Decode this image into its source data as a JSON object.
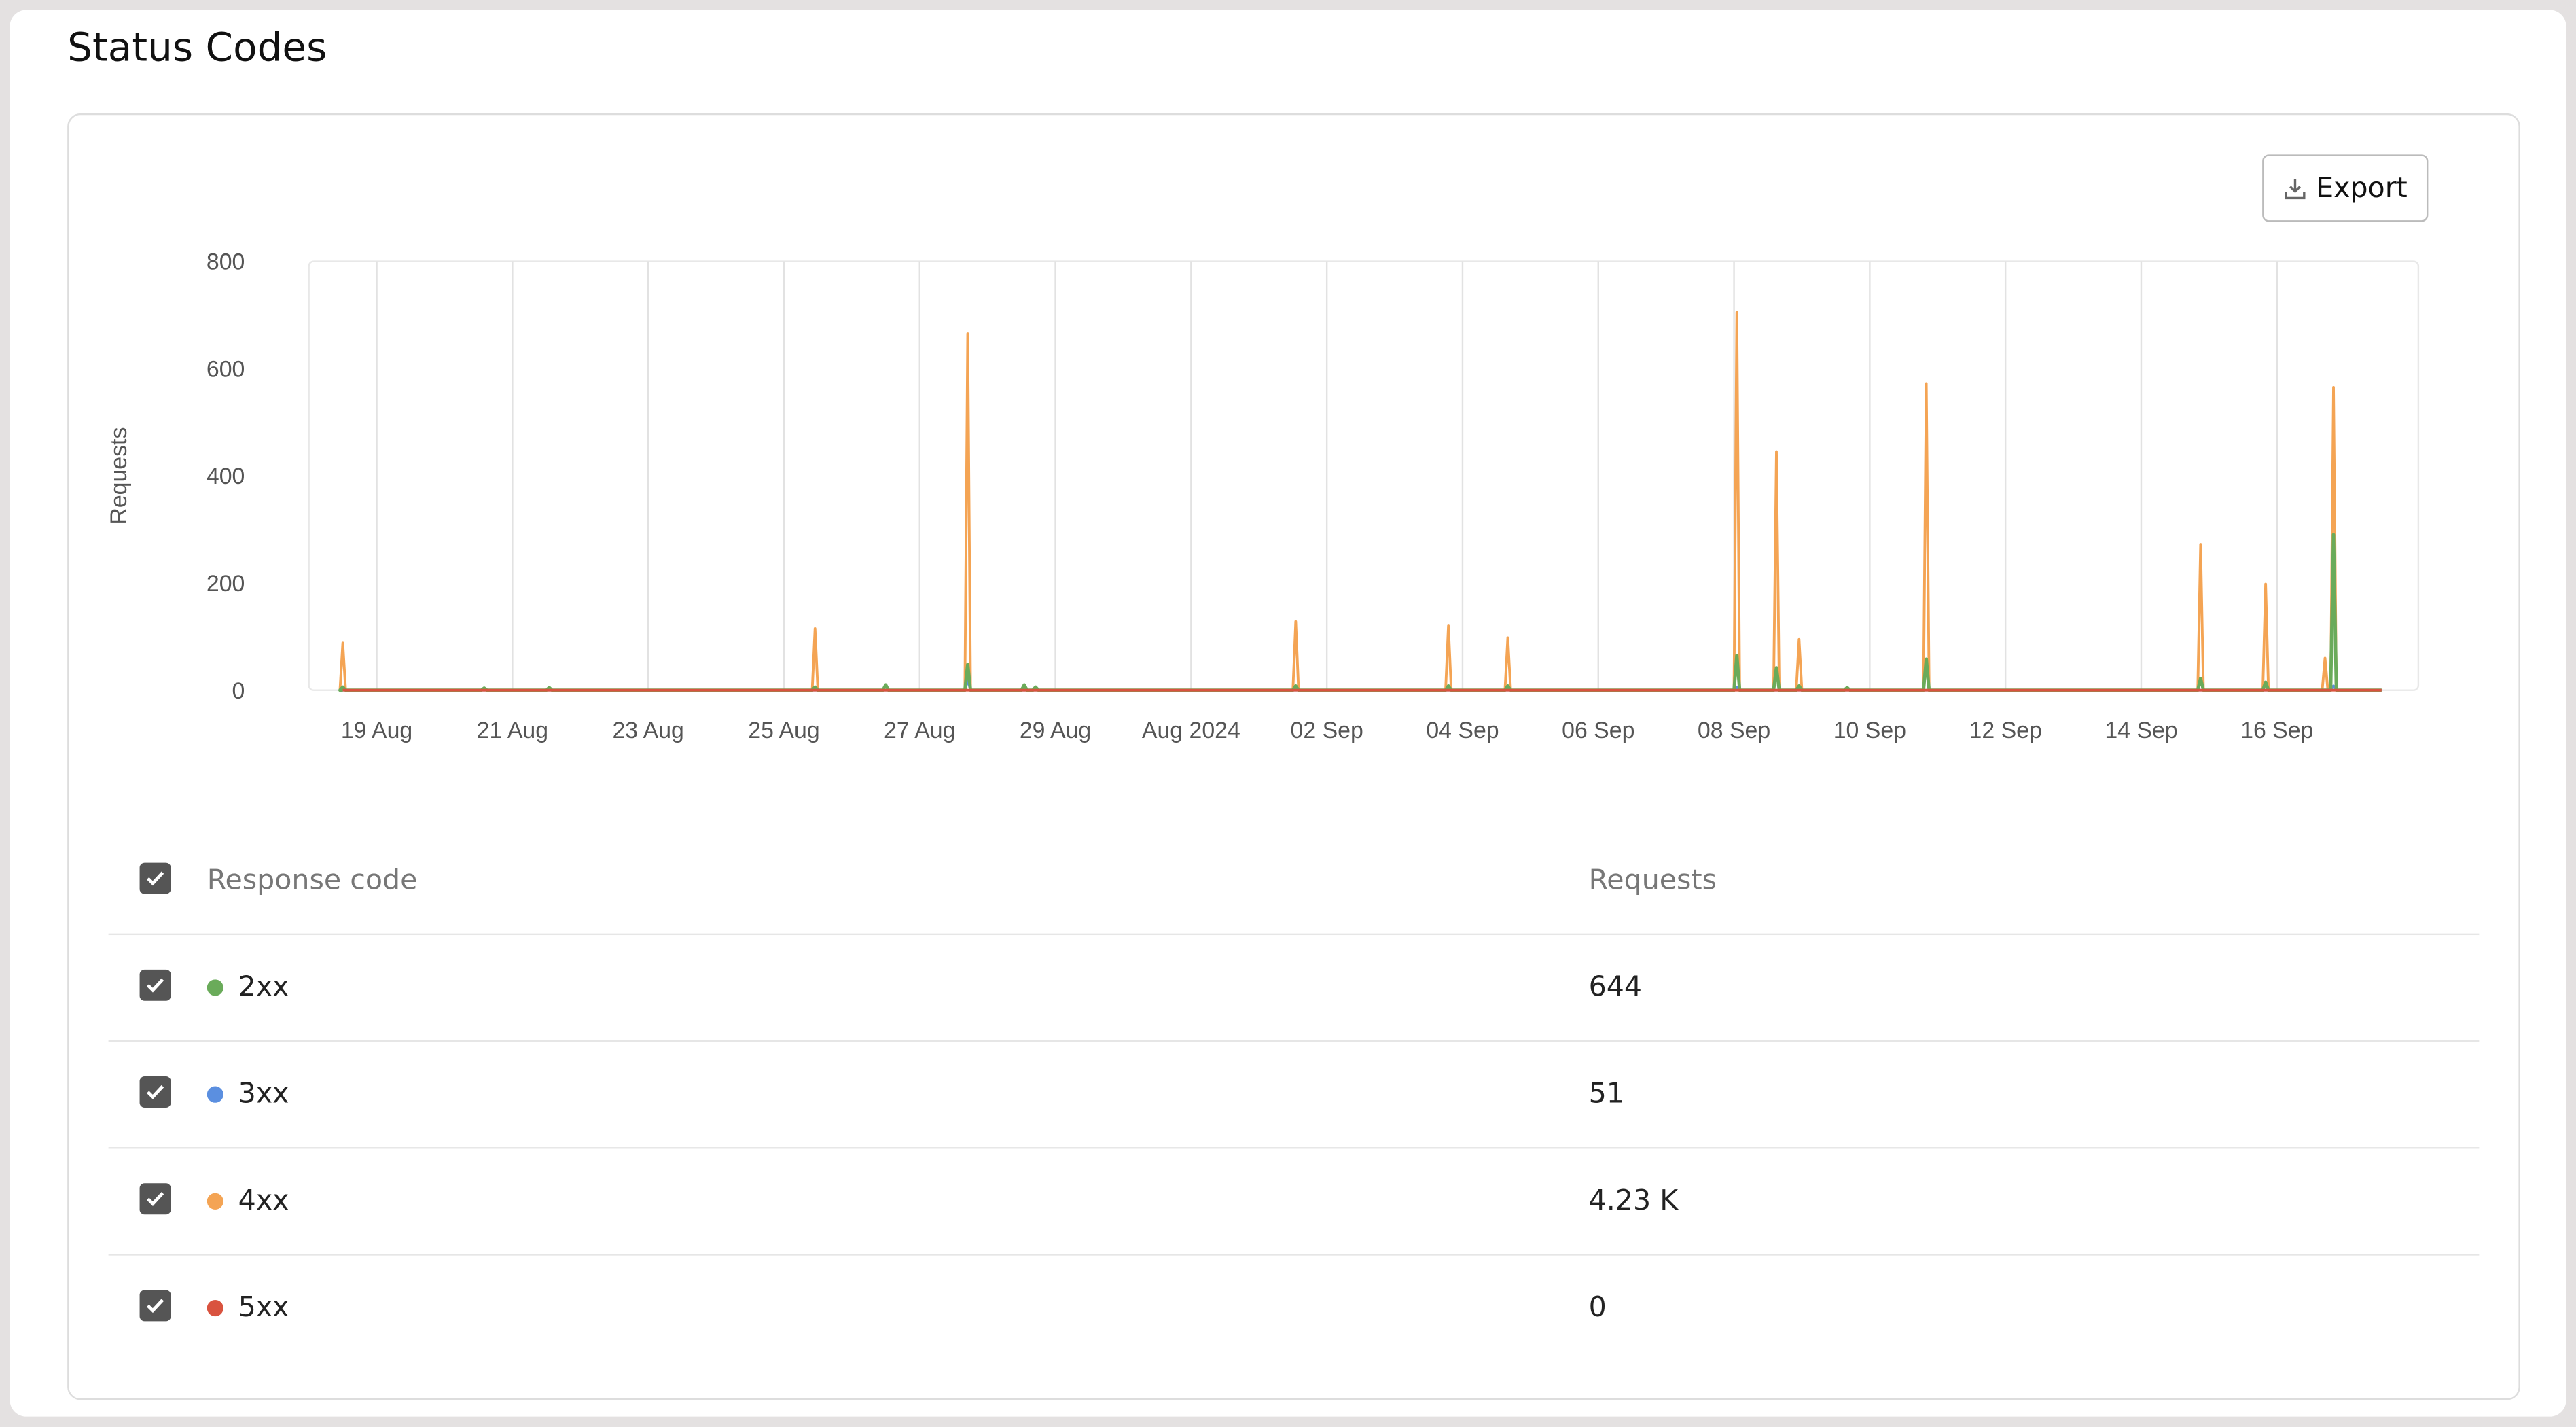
{
  "page": {
    "title": "Status Codes"
  },
  "toolbar": {
    "export_label": "Export",
    "export_icon": "download-icon"
  },
  "table": {
    "headers": {
      "code": "Response code",
      "requests": "Requests"
    },
    "rows": [
      {
        "code": "2xx",
        "requests": "644",
        "color": "#6aab5a",
        "checked": true
      },
      {
        "code": "3xx",
        "requests": "51",
        "color": "#5b8fe0",
        "checked": true
      },
      {
        "code": "4xx",
        "requests": "4.23 K",
        "color": "#f4a454",
        "checked": true
      },
      {
        "code": "5xx",
        "requests": "0",
        "color": "#d9533f",
        "checked": true
      }
    ]
  },
  "chart_data": {
    "type": "line",
    "ylabel": "Requests",
    "xlabel": "",
    "ylim": [
      0,
      800
    ],
    "yticks": [
      "0",
      "200",
      "400",
      "600",
      "800"
    ],
    "xlim": [
      "2024-08-18T00:00",
      "2024-09-18T02:00"
    ],
    "x_range_data": [
      "2024-08-18T12:00",
      "2024-09-17T13:00"
    ],
    "xticks": [
      {
        "date": "2024-08-19",
        "label": "19 Aug"
      },
      {
        "date": "2024-08-21",
        "label": "21 Aug"
      },
      {
        "date": "2024-08-23",
        "label": "23 Aug"
      },
      {
        "date": "2024-08-25",
        "label": "25 Aug"
      },
      {
        "date": "2024-08-27",
        "label": "27 Aug"
      },
      {
        "date": "2024-08-29",
        "label": "29 Aug"
      },
      {
        "date": "2024-08-31",
        "label": "Aug 2024"
      },
      {
        "date": "2024-09-02",
        "label": "02 Sep"
      },
      {
        "date": "2024-09-04",
        "label": "04 Sep"
      },
      {
        "date": "2024-09-06",
        "label": "06 Sep"
      },
      {
        "date": "2024-09-08",
        "label": "08 Sep"
      },
      {
        "date": "2024-09-10",
        "label": "10 Sep"
      },
      {
        "date": "2024-09-12",
        "label": "12 Sep"
      },
      {
        "date": "2024-09-14",
        "label": "14 Sep"
      },
      {
        "date": "2024-09-16",
        "label": "16 Sep"
      }
    ],
    "grid": "vertical",
    "baseline_value": 0,
    "series": [
      {
        "name": "4xx",
        "color": "#f4a454",
        "points": [
          [
            "2024-08-18T12:00",
            88
          ],
          [
            "2024-08-25T11:00",
            115
          ],
          [
            "2024-08-27T17:00",
            665
          ],
          [
            "2024-09-01T13:00",
            128
          ],
          [
            "2024-09-03T19:00",
            120
          ],
          [
            "2024-09-04T16:00",
            98
          ],
          [
            "2024-09-08T01:00",
            705
          ],
          [
            "2024-09-08T15:00",
            445
          ],
          [
            "2024-09-08T23:00",
            95
          ],
          [
            "2024-09-10T20:00",
            572
          ],
          [
            "2024-09-14T21:00",
            272
          ],
          [
            "2024-09-15T20:00",
            198
          ],
          [
            "2024-09-16T17:00",
            60
          ],
          [
            "2024-09-16T20:00",
            565
          ]
        ]
      },
      {
        "name": "3xx",
        "color": "#5b8fe0",
        "points": [
          [
            "2024-08-27T17:00",
            20
          ],
          [
            "2024-09-08T01:00",
            6
          ],
          [
            "2024-09-16T20:00",
            8
          ]
        ]
      },
      {
        "name": "2xx",
        "color": "#6aab5a",
        "points": [
          [
            "2024-08-18T12:00",
            6
          ],
          [
            "2024-08-20T14:00",
            4
          ],
          [
            "2024-08-21T13:00",
            5
          ],
          [
            "2024-08-25T11:00",
            6
          ],
          [
            "2024-08-26T12:00",
            10
          ],
          [
            "2024-08-27T17:00",
            48
          ],
          [
            "2024-08-28T13:00",
            10
          ],
          [
            "2024-08-28T17:00",
            6
          ],
          [
            "2024-09-01T13:00",
            8
          ],
          [
            "2024-09-03T19:00",
            8
          ],
          [
            "2024-09-04T16:00",
            8
          ],
          [
            "2024-09-08T01:00",
            65
          ],
          [
            "2024-09-08T15:00",
            42
          ],
          [
            "2024-09-08T23:00",
            8
          ],
          [
            "2024-09-09T16:00",
            5
          ],
          [
            "2024-09-10T20:00",
            58
          ],
          [
            "2024-09-14T21:00",
            22
          ],
          [
            "2024-09-15T20:00",
            15
          ],
          [
            "2024-09-16T20:00",
            290
          ]
        ]
      },
      {
        "name": "5xx",
        "color": "#d9533f",
        "points": []
      }
    ]
  }
}
